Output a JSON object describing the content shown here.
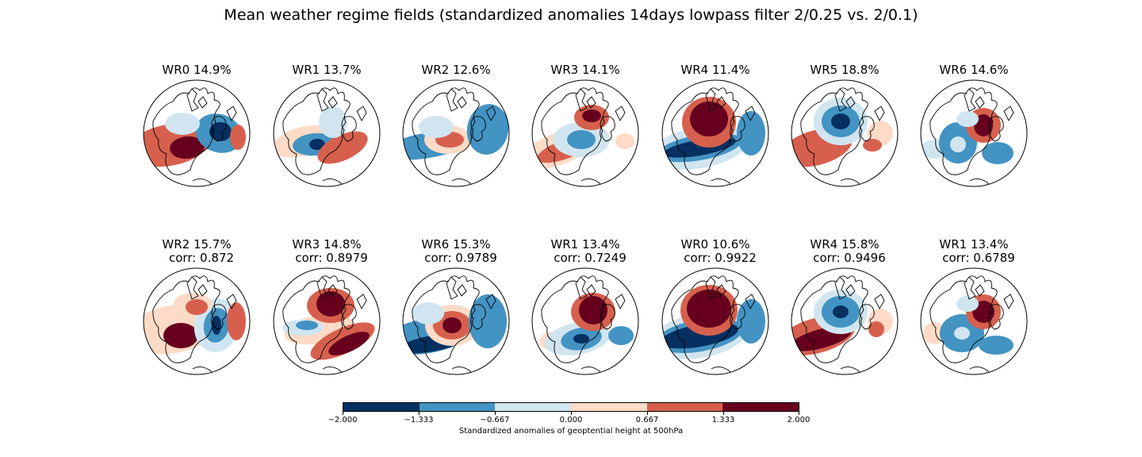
{
  "figure": {
    "title": "Mean weather regime fields (standardized anomalies 14days lowpass filter 2/0.25 vs. 2/0.1)"
  },
  "panels_top": [
    {
      "label": "WR0 14.9%"
    },
    {
      "label": "WR1 13.7%"
    },
    {
      "label": "WR2 12.6%"
    },
    {
      "label": "WR3 14.1%"
    },
    {
      "label": "WR4 11.4%"
    },
    {
      "label": "WR5 18.8%"
    },
    {
      "label": "WR6 14.6%"
    }
  ],
  "panels_bottom": [
    {
      "label": "WR2 15.7%",
      "corr": "corr: 0.872"
    },
    {
      "label": "WR3 14.8%",
      "corr": "corr: 0.8979"
    },
    {
      "label": "WR6 15.3%",
      "corr": "corr: 0.9789"
    },
    {
      "label": "WR1 13.4%",
      "corr": "corr: 0.7249"
    },
    {
      "label": "WR0 10.6%",
      "corr": "corr: 0.9922"
    },
    {
      "label": "WR4 15.8%",
      "corr": "corr: 0.9496"
    },
    {
      "label": "WR1 13.4%",
      "corr": "corr: 0.6789"
    }
  ],
  "colorbar": {
    "label": "Standardized anomalies of geoptential height at 500hPa",
    "ticks": [
      "−2.000",
      "−1.333",
      "−0.667",
      "0.000",
      "0.667",
      "1.333",
      "2.000"
    ],
    "colors": [
      "#053061",
      "#4393c3",
      "#d1e5f0",
      "#fddbc7",
      "#d6604d",
      "#67001f"
    ]
  }
}
